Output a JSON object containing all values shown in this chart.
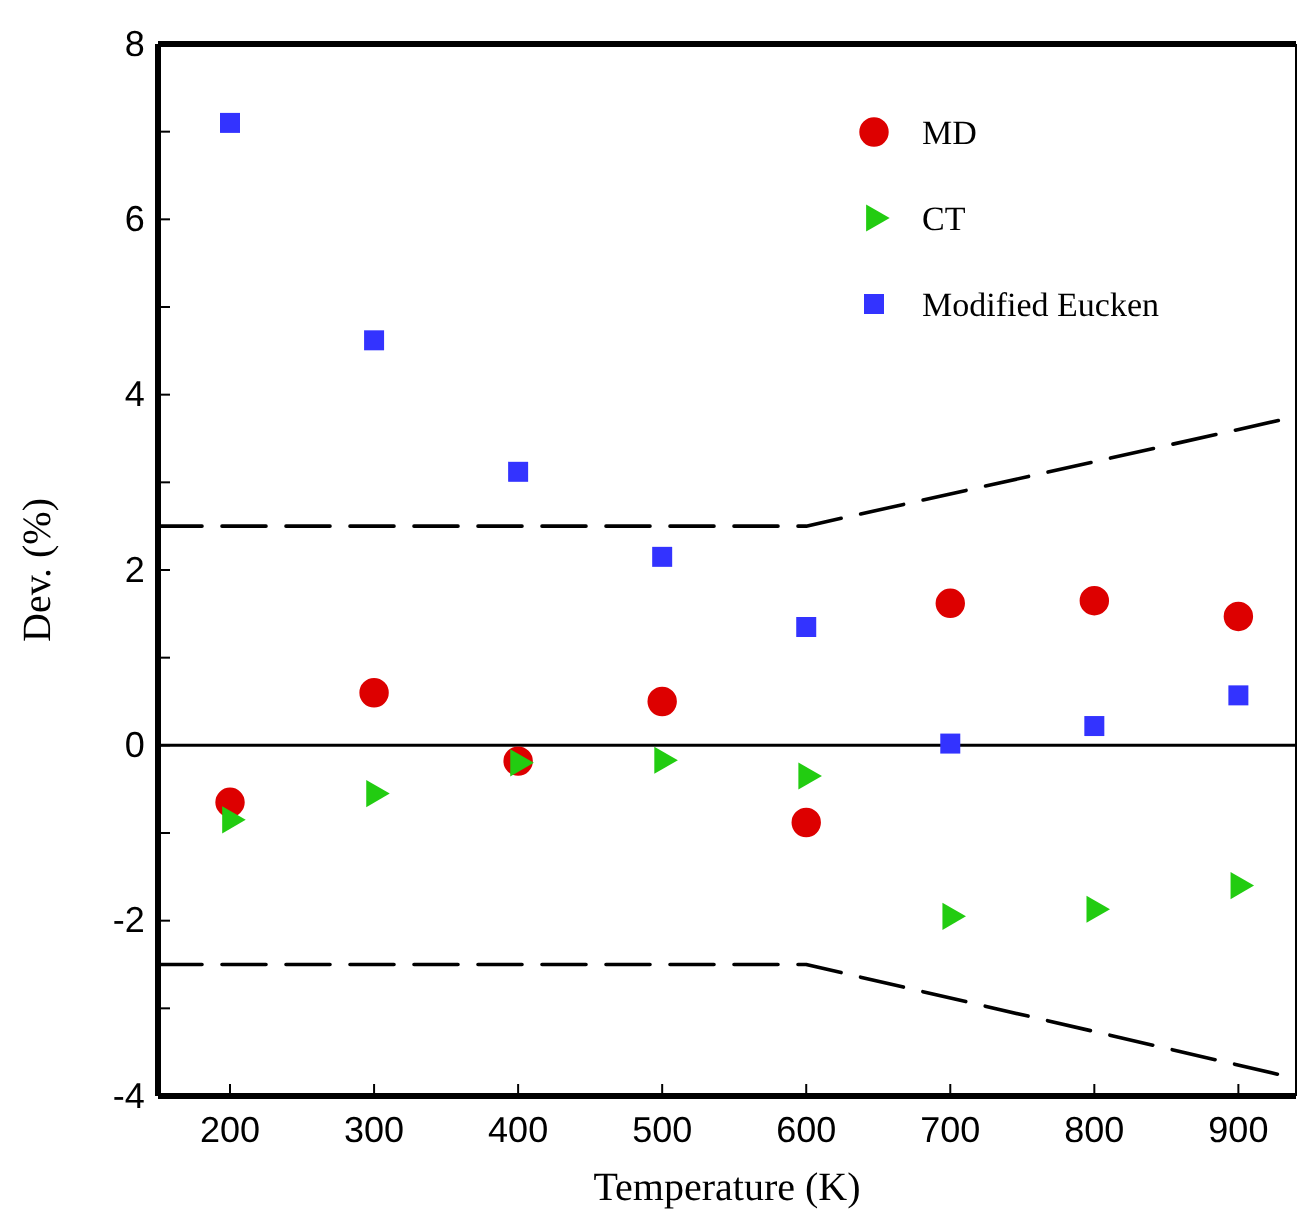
{
  "chart_data": {
    "type": "scatter",
    "xlabel": "Temperature (K)",
    "ylabel": "Dev. (%)",
    "x": [
      200,
      300,
      400,
      500,
      600,
      700,
      800,
      900
    ],
    "xlim": [
      150,
      940
    ],
    "xticks": [
      200,
      300,
      400,
      500,
      600,
      700,
      800,
      900
    ],
    "ylim": [
      -4,
      8
    ],
    "yticks": [
      -4,
      {
        "value": -3,
        "label": null
      },
      -2,
      {
        "value": -1,
        "label": null
      },
      0,
      {
        "value": 1,
        "label": null
      },
      2,
      {
        "value": 3,
        "label": null
      },
      4,
      {
        "value": 5,
        "label": null
      },
      6,
      {
        "value": 7,
        "label": null
      },
      8
    ],
    "grid": false,
    "legend": "top right",
    "ref_lines": [
      {
        "axis": "y",
        "value": 0,
        "color": "#000000",
        "line_style": "solid"
      }
    ],
    "series": [
      {
        "type": "line",
        "color": "#000000",
        "marker": "none",
        "line_style": "dashed",
        "x": [
          150,
          600,
          940
        ],
        "values": [
          2.5,
          2.5,
          3.75
        ]
      },
      {
        "type": "line",
        "color": "#000000",
        "marker": "none",
        "line_style": "dashed",
        "x": [
          150,
          600,
          940
        ],
        "values": [
          -2.5,
          -2.5,
          -3.8
        ]
      },
      {
        "name": "MD",
        "color": "#dd0000",
        "marker": "circle",
        "values": [
          -0.65,
          0.6,
          -0.18,
          0.5,
          -0.88,
          1.62,
          1.65,
          1.47
        ]
      },
      {
        "name": "CT",
        "color": "#22cc11",
        "marker": "triangle",
        "values": [
          -0.85,
          -0.55,
          -0.2,
          -0.17,
          -0.35,
          -1.95,
          -1.87,
          -1.6
        ]
      },
      {
        "name": "Modified Eucken",
        "color": "#3333ff",
        "marker": "square",
        "values": [
          7.1,
          4.62,
          3.12,
          2.15,
          1.35,
          0.02,
          0.22,
          0.57
        ]
      }
    ]
  }
}
